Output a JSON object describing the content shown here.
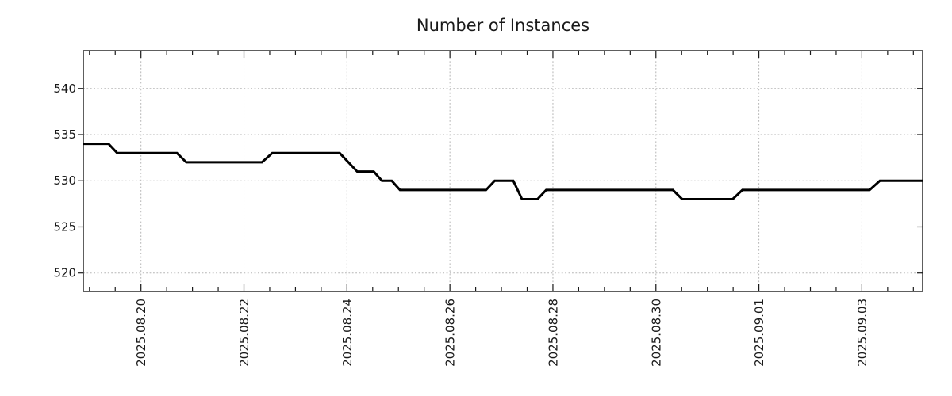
{
  "page": {
    "background": "#ffffff"
  },
  "chart_data": {
    "type": "line",
    "title": "Number of Instances",
    "legend_visible": false,
    "grid": true,
    "line_style": "step-like time series, solid black, ~3px",
    "x": {
      "label": "",
      "unit": "days relative to 2025-08-20 00:00 (estimated from tick spacing)",
      "min": -1.12,
      "max": 15.18,
      "major_ticks": [
        {
          "pos": 0,
          "label": "2025.08.20"
        },
        {
          "pos": 2,
          "label": "2025.08.22"
        },
        {
          "pos": 4,
          "label": "2025.08.24"
        },
        {
          "pos": 6,
          "label": "2025.08.26"
        },
        {
          "pos": 8,
          "label": "2025.08.28"
        },
        {
          "pos": 10,
          "label": "2025.08.30"
        },
        {
          "pos": 12,
          "label": "2025.09.01"
        },
        {
          "pos": 14,
          "label": "2025.09.03"
        }
      ],
      "minor_tick_start": -1.0,
      "minor_tick_step": 0.5
    },
    "y": {
      "label": "",
      "min": 518.0,
      "max": 544.1,
      "ticks": [
        520,
        525,
        530,
        535,
        540
      ]
    },
    "series": [
      {
        "name": "Number of Instances",
        "color": "#000000",
        "points": [
          [
            -1.12,
            534
          ],
          [
            -0.63,
            534
          ],
          [
            -0.46,
            533
          ],
          [
            0.7,
            533
          ],
          [
            0.88,
            532
          ],
          [
            2.35,
            532
          ],
          [
            2.55,
            533
          ],
          [
            3.86,
            533
          ],
          [
            4.2,
            531
          ],
          [
            4.52,
            531
          ],
          [
            4.68,
            530
          ],
          [
            4.87,
            530
          ],
          [
            5.03,
            529
          ],
          [
            6.7,
            529
          ],
          [
            6.87,
            530
          ],
          [
            7.23,
            530
          ],
          [
            7.4,
            528
          ],
          [
            7.7,
            528
          ],
          [
            7.87,
            529
          ],
          [
            10.33,
            529
          ],
          [
            10.51,
            528
          ],
          [
            11.49,
            528
          ],
          [
            11.68,
            529
          ],
          [
            14.15,
            529
          ],
          [
            14.35,
            530
          ],
          [
            15.18,
            530
          ]
        ]
      }
    ],
    "colors": {
      "line": "#000000",
      "grid": "#b5b5b5",
      "axis": "#1a1a1a",
      "text": "#1a1a1a",
      "background": "#ffffff"
    }
  }
}
